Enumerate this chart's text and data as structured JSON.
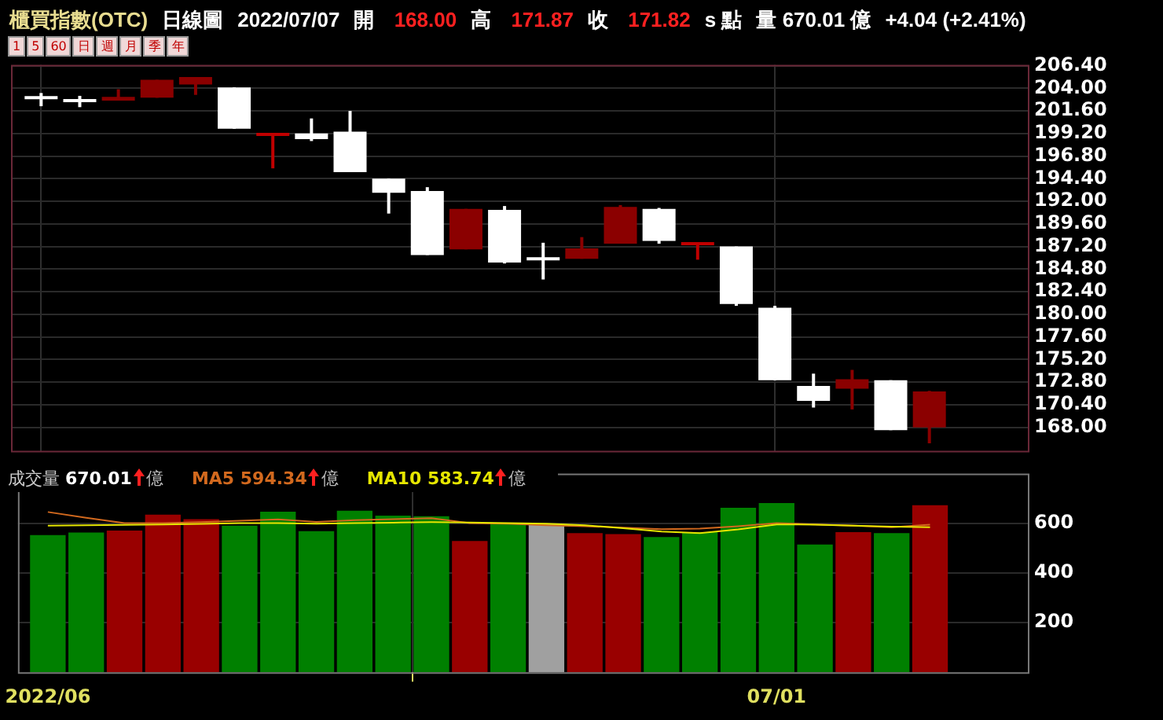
{
  "chart_data": [
    {
      "type": "candlestick",
      "title": "櫃買指數(OTC)",
      "subtitle": "日線圖",
      "annotations": [
        "2022/07/07",
        "開 168.00",
        "高 171.87",
        "收 171.82",
        "s 點",
        "量 670.01 億",
        "+4.04 (+2.41%)",
        "1",
        "5",
        "60",
        "日",
        "週",
        "月",
        "季",
        "年"
      ],
      "categories": [
        null,
        null,
        null,
        null,
        null,
        null,
        null,
        null,
        null,
        null,
        null,
        null,
        null,
        null,
        null,
        null,
        null,
        null,
        null,
        null,
        null,
        null,
        null,
        null
      ],
      "ohlc": [
        [
          203.1,
          203.5,
          202.1,
          202.9
        ],
        [
          202.8,
          203.2,
          202.0,
          202.6
        ],
        [
          202.7,
          203.9,
          202.7,
          203.1
        ],
        [
          203.0,
          204.9,
          203.0,
          204.9
        ],
        [
          204.4,
          205.2,
          203.3,
          205.2
        ],
        [
          204.1,
          204.1,
          199.7,
          199.7
        ],
        [
          199.0,
          199.2,
          195.5,
          199.2
        ],
        [
          199.2,
          200.8,
          198.4,
          198.6
        ],
        [
          199.4,
          201.6,
          195.1,
          195.1
        ],
        [
          194.4,
          194.4,
          190.7,
          192.9
        ],
        [
          193.1,
          193.5,
          186.3,
          186.3
        ],
        [
          186.9,
          191.2,
          186.9,
          191.2
        ],
        [
          191.1,
          191.5,
          185.4,
          185.5
        ],
        [
          186.0,
          187.6,
          183.7,
          185.8
        ],
        [
          185.9,
          188.2,
          185.9,
          187.0
        ],
        [
          187.5,
          191.6,
          187.5,
          191.4
        ],
        [
          191.2,
          191.3,
          187.5,
          187.8
        ],
        [
          187.4,
          187.6,
          185.8,
          187.6
        ],
        [
          187.2,
          187.2,
          180.9,
          181.1
        ],
        [
          180.7,
          180.9,
          173.0,
          173.0
        ],
        [
          172.4,
          173.7,
          170.1,
          170.8
        ],
        [
          172.1,
          174.1,
          169.9,
          173.1
        ],
        [
          173.0,
          173.0,
          167.7,
          167.7
        ],
        [
          168.0,
          171.87,
          166.3,
          171.82
        ]
      ],
      "colors": [
        "#ffffff",
        "#ffffff",
        "#8b0000",
        "#8b0000",
        "#8b0000",
        "#ffffff",
        "#c00000",
        "#ffffff",
        "#ffffff",
        "#ffffff",
        "#ffffff",
        "#8b0000",
        "#ffffff",
        "#ffffff",
        "#8b0000",
        "#8b0000",
        "#ffffff",
        "#c00000",
        "#ffffff",
        "#ffffff",
        "#ffffff",
        "#8b0000",
        "#ffffff",
        "#8b0000"
      ],
      "ylim": [
        165.5,
        206.5
      ],
      "yticks": [
        {
          "value": 168,
          "label": "168.00"
        },
        {
          "value": 170.4,
          "label": "170.40"
        },
        {
          "value": 172.8,
          "label": "172.80"
        },
        {
          "value": 175.2,
          "label": "175.20"
        },
        {
          "value": 177.6,
          "label": "177.60"
        },
        {
          "value": 180,
          "label": "180.00"
        },
        {
          "value": 182.4,
          "label": "182.40"
        },
        {
          "value": 184.8,
          "label": "184.80"
        },
        {
          "value": 187.2,
          "label": "187.20"
        },
        {
          "value": 189.6,
          "label": "189.60"
        },
        {
          "value": 192,
          "label": "192.00"
        },
        {
          "value": 194.4,
          "label": "194.40"
        },
        {
          "value": 196.8,
          "label": "196.80"
        },
        {
          "value": 199.2,
          "label": "199.20"
        },
        {
          "value": 201.6,
          "label": "201.60"
        },
        {
          "value": 204,
          "label": "204.00"
        },
        {
          "value": 206.4,
          "label": "206.40"
        }
      ],
      "grid": true,
      "tick_labels": "y"
    },
    {
      "type": "bar",
      "title": "成交量",
      "annotations": [
        "670.01 億",
        "594.34 億",
        "583.74 億"
      ],
      "categories": [
        "2022/06",
        null,
        null,
        null,
        null,
        null,
        null,
        null,
        null,
        null,
        null,
        null,
        null,
        null,
        null,
        null,
        null,
        null,
        null,
        "07/01",
        null,
        null,
        null,
        null
      ],
      "values": [
        550,
        560,
        568,
        632,
        614,
        588,
        644,
        566,
        648,
        628,
        626,
        526,
        600,
        594,
        558,
        554,
        542,
        562,
        660,
        679,
        512,
        562,
        558,
        670
      ],
      "colors": [
        "#008000",
        "#008000",
        "#990000",
        "#990000",
        "#990000",
        "#008000",
        "#008000",
        "#008000",
        "#008000",
        "#008000",
        "#008000",
        "#990000",
        "#008000",
        "#a0a0a0",
        "#990000",
        "#990000",
        "#008000",
        "#008000",
        "#008000",
        "#008000",
        "#008000",
        "#990000",
        "#008000",
        "#990000"
      ],
      "series": [
        {
          "name": "MA5",
          "type": "line",
          "color": "#d2691e",
          "values": [
            645,
            622,
            600,
            600,
            604,
            610,
            615,
            605,
            612,
            616,
            620,
            600,
            598,
            592,
            588,
            582,
            576,
            578,
            588,
            600,
            595,
            590,
            584,
            594
          ]
        },
        {
          "name": "MA10",
          "type": "line",
          "color": "#e6e600",
          "values": [
            590,
            592,
            593,
            595,
            597,
            600,
            600,
            598,
            600,
            602,
            604,
            603,
            600,
            598,
            592,
            580,
            566,
            560,
            575,
            595,
            594,
            590,
            586,
            584
          ]
        }
      ],
      "ylim": [
        0,
        800
      ],
      "yticks": [
        200,
        400,
        600
      ],
      "grid": true,
      "marker": "none"
    }
  ]
}
